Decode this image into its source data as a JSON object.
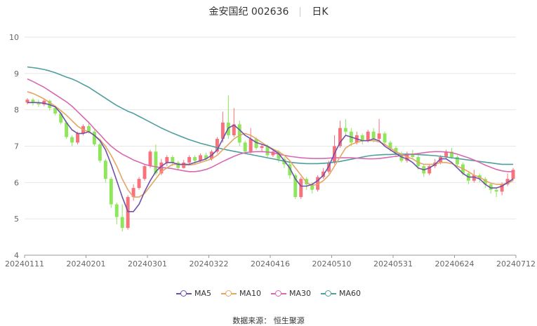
{
  "header": {
    "stock": "金安国纪 002636",
    "period": "日K"
  },
  "source": "数据来源： 恒生聚源",
  "chart_data": {
    "type": "candlestick",
    "ylim": [
      4,
      10
    ],
    "yticks": [
      "4",
      "5",
      "6",
      "7",
      "8",
      "9",
      "10"
    ],
    "xticks": [
      "20240111",
      "20240201",
      "20240301",
      "20240322",
      "20240416",
      "20240510",
      "20240531",
      "20240624",
      "20240712"
    ],
    "colors": {
      "up": "#f7727a",
      "down": "#8ee65a",
      "ma5": "#6f51a8",
      "ma10": "#e6a465",
      "ma30": "#d769b0",
      "ma60": "#4f9e9e",
      "grid": "#e6e6e6"
    },
    "legend": [
      {
        "name": "MA5",
        "color": "#6f51a8"
      },
      {
        "name": "MA10",
        "color": "#e6a465"
      },
      {
        "name": "MA30",
        "color": "#d769b0"
      },
      {
        "name": "MA60",
        "color": "#4f9e9e"
      }
    ],
    "candles": [
      [
        8.2,
        8.28,
        8.32,
        8.15
      ],
      [
        8.28,
        8.2,
        8.33,
        8.12
      ],
      [
        8.2,
        8.15,
        8.28,
        8.08
      ],
      [
        8.15,
        8.25,
        8.3,
        8.1
      ],
      [
        8.25,
        8.05,
        8.28,
        7.98
      ],
      [
        8.05,
        7.9,
        8.1,
        7.85
      ],
      [
        7.9,
        7.65,
        7.95,
        7.6
      ],
      [
        7.65,
        7.25,
        7.7,
        7.2
      ],
      [
        7.25,
        7.1,
        7.3,
        7.0
      ],
      [
        7.1,
        7.35,
        7.4,
        7.05
      ],
      [
        7.35,
        7.55,
        7.6,
        7.3
      ],
      [
        7.55,
        7.4,
        7.68,
        7.35
      ],
      [
        7.4,
        7.05,
        7.45,
        7.0
      ],
      [
        7.05,
        6.6,
        7.1,
        6.55
      ],
      [
        6.6,
        6.1,
        6.65,
        6.0
      ],
      [
        6.1,
        5.4,
        6.15,
        5.3
      ],
      [
        5.4,
        5.05,
        5.45,
        4.85
      ],
      [
        5.05,
        4.75,
        5.4,
        4.65
      ],
      [
        4.75,
        5.6,
        5.65,
        4.7
      ],
      [
        5.6,
        5.85,
        5.95,
        5.5
      ],
      [
        5.85,
        6.1,
        6.15,
        5.8
      ],
      [
        6.1,
        6.45,
        6.5,
        6.05
      ],
      [
        6.45,
        6.85,
        6.9,
        6.4
      ],
      [
        6.85,
        6.25,
        7.05,
        6.2
      ],
      [
        6.25,
        6.55,
        6.65,
        6.2
      ],
      [
        6.55,
        6.7,
        6.75,
        6.45
      ],
      [
        6.7,
        6.55,
        6.75,
        6.45
      ],
      [
        6.55,
        6.4,
        6.6,
        6.35
      ],
      [
        6.4,
        6.55,
        6.62,
        6.38
      ],
      [
        6.55,
        6.7,
        6.75,
        6.5
      ],
      [
        6.7,
        6.6,
        6.75,
        6.5
      ],
      [
        6.6,
        6.75,
        6.8,
        6.55
      ],
      [
        6.75,
        6.65,
        6.82,
        6.6
      ],
      [
        6.65,
        6.85,
        6.9,
        6.6
      ],
      [
        6.85,
        7.2,
        7.25,
        6.8
      ],
      [
        7.2,
        7.65,
        7.95,
        7.1
      ],
      [
        7.65,
        7.3,
        8.4,
        7.2
      ],
      [
        7.3,
        7.6,
        8.05,
        7.25
      ],
      [
        7.6,
        7.1,
        7.7,
        7.0
      ],
      [
        7.1,
        6.85,
        7.15,
        6.8
      ],
      [
        6.85,
        7.2,
        7.5,
        6.8
      ],
      [
        7.2,
        6.95,
        7.25,
        6.9
      ],
      [
        6.95,
        7.0,
        7.05,
        6.85
      ],
      [
        7.0,
        6.75,
        7.05,
        6.7
      ],
      [
        6.75,
        6.85,
        6.9,
        6.7
      ],
      [
        6.85,
        6.65,
        6.9,
        6.55
      ],
      [
        6.65,
        6.5,
        6.7,
        6.4
      ],
      [
        6.5,
        6.2,
        6.55,
        6.1
      ],
      [
        6.2,
        5.6,
        6.25,
        5.55
      ],
      [
        5.6,
        6.1,
        6.15,
        5.55
      ],
      [
        6.1,
        5.95,
        6.15,
        5.8
      ],
      [
        5.95,
        5.8,
        6.0,
        5.7
      ],
      [
        5.8,
        6.15,
        6.2,
        5.75
      ],
      [
        6.15,
        6.3,
        6.4,
        6.1
      ],
      [
        6.3,
        6.55,
        6.6,
        6.25
      ],
      [
        6.55,
        7.0,
        7.3,
        6.5
      ],
      [
        7.0,
        7.5,
        7.7,
        6.95
      ],
      [
        7.5,
        7.4,
        7.75,
        7.3
      ],
      [
        7.4,
        7.1,
        7.5,
        7.0
      ],
      [
        7.1,
        7.3,
        7.4,
        7.05
      ],
      [
        7.3,
        7.15,
        7.35,
        7.05
      ],
      [
        7.15,
        7.4,
        7.45,
        7.1
      ],
      [
        7.4,
        7.2,
        7.5,
        7.1
      ],
      [
        7.2,
        7.35,
        7.75,
        7.15
      ],
      [
        7.35,
        7.1,
        7.4,
        7.0
      ],
      [
        7.1,
        6.95,
        7.15,
        6.85
      ],
      [
        6.95,
        6.8,
        7.0,
        6.7
      ],
      [
        6.8,
        6.6,
        6.85,
        6.55
      ],
      [
        6.6,
        6.8,
        6.85,
        6.55
      ],
      [
        6.8,
        6.7,
        6.9,
        6.65
      ],
      [
        6.7,
        6.45,
        6.75,
        6.35
      ],
      [
        6.45,
        6.25,
        6.5,
        6.15
      ],
      [
        6.25,
        6.45,
        6.5,
        6.2
      ],
      [
        6.45,
        6.55,
        6.65,
        6.4
      ],
      [
        6.55,
        6.7,
        6.75,
        6.5
      ],
      [
        6.7,
        6.85,
        6.9,
        6.65
      ],
      [
        6.85,
        6.7,
        6.95,
        6.65
      ],
      [
        6.7,
        6.5,
        6.75,
        6.45
      ],
      [
        6.5,
        6.25,
        6.55,
        6.2
      ],
      [
        6.25,
        6.05,
        6.3,
        5.95
      ],
      [
        6.05,
        6.2,
        6.35,
        6.0
      ],
      [
        6.2,
        6.1,
        6.25,
        6.0
      ],
      [
        6.1,
        5.95,
        6.15,
        5.85
      ],
      [
        5.95,
        5.8,
        6.0,
        5.7
      ],
      [
        5.8,
        5.75,
        5.85,
        5.6
      ],
      [
        5.75,
        5.95,
        6.0,
        5.65
      ],
      [
        5.95,
        6.1,
        6.25,
        5.9
      ],
      [
        6.1,
        6.35,
        6.4,
        6.05
      ]
    ],
    "ma5": [
      8.2,
      8.2,
      8.2,
      8.18,
      8.14,
      8.08,
      7.9,
      7.65,
      7.45,
      7.35,
      7.35,
      7.4,
      7.3,
      7.15,
      6.9,
      6.5,
      6.05,
      5.6,
      5.2,
      5.2,
      5.4,
      5.75,
      6.05,
      6.3,
      6.45,
      6.55,
      6.55,
      6.5,
      6.5,
      6.5,
      6.55,
      6.6,
      6.65,
      6.75,
      6.9,
      7.2,
      7.5,
      7.58,
      7.45,
      7.3,
      7.2,
      7.1,
      7.05,
      7.0,
      6.9,
      6.8,
      6.6,
      6.4,
      6.1,
      5.9,
      5.9,
      5.95,
      6.05,
      6.2,
      6.45,
      6.8,
      7.1,
      7.3,
      7.25,
      7.2,
      7.15,
      7.15,
      7.2,
      7.15,
      7.0,
      6.9,
      6.8,
      6.7,
      6.65,
      6.55,
      6.4,
      6.35,
      6.4,
      6.5,
      6.65,
      6.65,
      6.55,
      6.4,
      6.25,
      6.15,
      6.15,
      6.1,
      5.95,
      5.85,
      5.85,
      5.9,
      6.0,
      6.1
    ],
    "ma10": [
      8.5,
      8.45,
      8.38,
      8.3,
      8.2,
      8.1,
      7.98,
      7.85,
      7.7,
      7.55,
      7.45,
      7.4,
      7.3,
      7.18,
      7.0,
      6.75,
      6.45,
      6.1,
      5.8,
      5.6,
      5.6,
      5.7,
      5.9,
      6.1,
      6.3,
      6.4,
      6.5,
      6.5,
      6.48,
      6.48,
      6.5,
      6.55,
      6.6,
      6.65,
      6.75,
      6.9,
      7.05,
      7.2,
      7.3,
      7.35,
      7.3,
      7.2,
      7.1,
      7.0,
      6.92,
      6.85,
      6.75,
      6.6,
      6.4,
      6.2,
      6.0,
      5.92,
      5.95,
      6.05,
      6.2,
      6.45,
      6.7,
      6.95,
      7.05,
      7.1,
      7.15,
      7.15,
      7.15,
      7.12,
      7.05,
      6.95,
      6.85,
      6.78,
      6.7,
      6.65,
      6.55,
      6.5,
      6.5,
      6.5,
      6.55,
      6.55,
      6.52,
      6.45,
      6.38,
      6.3,
      6.2,
      6.15,
      6.05,
      5.98,
      5.95,
      5.95,
      5.98,
      6.05
    ],
    "ma30": [
      8.85,
      8.78,
      8.7,
      8.62,
      8.52,
      8.42,
      8.32,
      8.22,
      8.1,
      7.95,
      7.8,
      7.65,
      7.48,
      7.32,
      7.15,
      7.0,
      6.88,
      6.78,
      6.7,
      6.62,
      6.56,
      6.5,
      6.46,
      6.43,
      6.41,
      6.4,
      6.38,
      6.35,
      6.32,
      6.3,
      6.3,
      6.32,
      6.36,
      6.42,
      6.5,
      6.58,
      6.65,
      6.72,
      6.78,
      6.82,
      6.84,
      6.85,
      6.85,
      6.84,
      6.82,
      6.78,
      6.75,
      6.72,
      6.7,
      6.68,
      6.67,
      6.66,
      6.66,
      6.66,
      6.67,
      6.68,
      6.68,
      6.68,
      6.68,
      6.67,
      6.66,
      6.65,
      6.65,
      6.66,
      6.68,
      6.7,
      6.72,
      6.74,
      6.76,
      6.78,
      6.8,
      6.82,
      6.84,
      6.85,
      6.85,
      6.84,
      6.82,
      6.78,
      6.73,
      6.68,
      6.62,
      6.55,
      6.48,
      6.42,
      6.36,
      6.32,
      6.3,
      6.3
    ],
    "ma60": [
      9.18,
      9.16,
      9.14,
      9.11,
      9.07,
      9.02,
      8.96,
      8.9,
      8.85,
      8.78,
      8.7,
      8.62,
      8.52,
      8.42,
      8.32,
      8.22,
      8.12,
      8.04,
      7.96,
      7.9,
      7.82,
      7.74,
      7.66,
      7.58,
      7.5,
      7.43,
      7.36,
      7.3,
      7.24,
      7.18,
      7.13,
      7.08,
      7.04,
      7.0,
      6.96,
      6.92,
      6.89,
      6.86,
      6.83,
      6.8,
      6.77,
      6.74,
      6.71,
      6.68,
      6.65,
      6.62,
      6.59,
      6.56,
      6.54,
      6.53,
      6.52,
      6.52,
      6.52,
      6.53,
      6.54,
      6.56,
      6.58,
      6.61,
      6.64,
      6.67,
      6.7,
      6.73,
      6.75,
      6.76,
      6.77,
      6.77,
      6.78,
      6.78,
      6.78,
      6.78,
      6.77,
      6.76,
      6.75,
      6.74,
      6.72,
      6.7,
      6.68,
      6.66,
      6.64,
      6.62,
      6.6,
      6.58,
      6.56,
      6.54,
      6.52,
      6.5,
      6.5,
      6.5
    ]
  }
}
